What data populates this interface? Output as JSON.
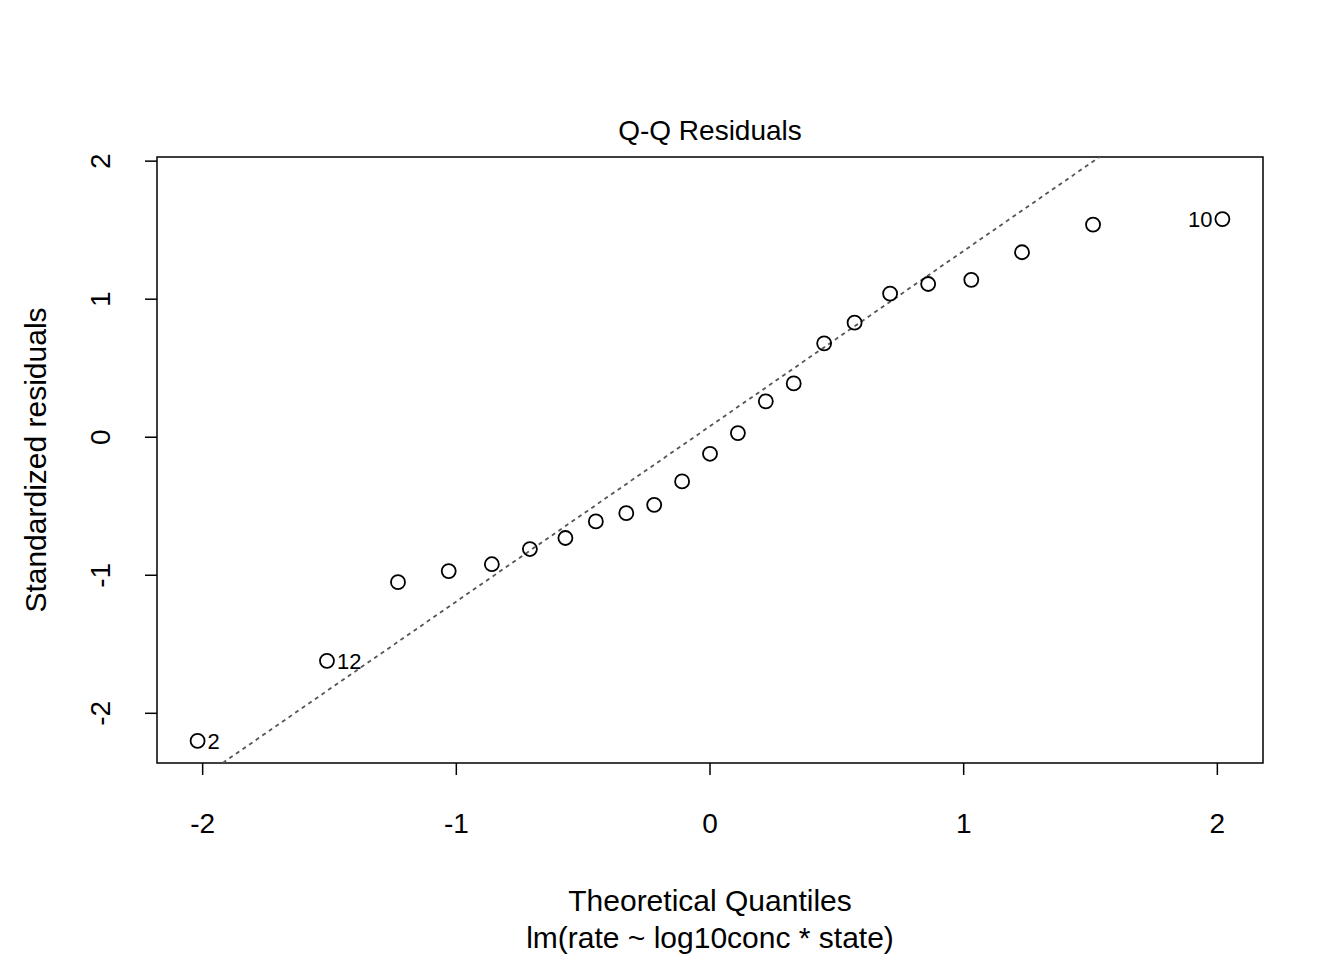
{
  "chart_data": {
    "type": "scatter",
    "title": "Q-Q Residuals",
    "x_label": "Theoretical Quantiles",
    "subtitle": "lm(rate ~ log10conc * state)",
    "y_label": "Standardized residuals",
    "x": [
      -2.02,
      -1.51,
      -1.23,
      -1.03,
      -0.86,
      -0.71,
      -0.57,
      -0.45,
      -0.33,
      -0.22,
      -0.11,
      0,
      0.11,
      0.22,
      0.33,
      0.45,
      0.57,
      0.71,
      0.86,
      1.03,
      1.23,
      1.51,
      2.02
    ],
    "values": [
      -2.2,
      -1.62,
      -1.05,
      -0.97,
      -0.92,
      -0.81,
      -0.73,
      -0.61,
      -0.55,
      -0.49,
      -0.32,
      -0.12,
      0.03,
      0.26,
      0.39,
      0.68,
      0.83,
      1.04,
      1.11,
      1.14,
      1.34,
      1.54,
      1.58
    ],
    "point_labels": [
      "2",
      "12",
      null,
      null,
      null,
      null,
      null,
      null,
      null,
      null,
      null,
      null,
      null,
      null,
      null,
      null,
      null,
      null,
      null,
      null,
      null,
      null,
      "10"
    ],
    "color": "#000000",
    "marker": "circle",
    "reference_line": {
      "intercept": 0.08,
      "slope": 1.27,
      "line_style": "dotted",
      "color": "#555555"
    },
    "xlim": [
      -2.18,
      2.18
    ],
    "ylim": [
      -2.36,
      2.03
    ],
    "xticks": [
      -2,
      -1,
      0,
      1,
      2
    ],
    "yticks": [
      -2,
      -1,
      0,
      1,
      2
    ],
    "grid": false
  }
}
